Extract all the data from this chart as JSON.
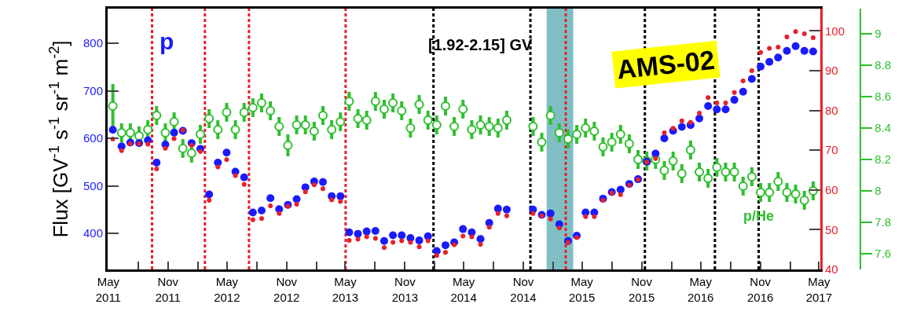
{
  "chart_data": {
    "type": "scatter",
    "ylabel": "Flux [GV$^{-1}$ s$^{-1}$ sr$^{-1}$ m$^{-2}$]",
    "annotations": [
      "[1.92-2.15] GV",
      "AMS-02"
    ],
    "x": [
      "2011-05-15",
      "2011-06-11",
      "2011-07-08",
      "2011-08-04",
      "2011-08-31",
      "2011-09-27",
      "2011-10-24",
      "2011-11-20",
      "2011-12-17",
      "2012-01-13",
      "2012-02-09",
      "2012-03-07",
      "2012-04-03",
      "2012-04-30",
      "2012-05-27",
      "2012-06-23",
      "2012-07-20",
      "2012-08-16",
      "2012-09-12",
      "2012-10-09",
      "2012-11-05",
      "2012-12-02",
      "2012-12-29",
      "2013-01-25",
      "2013-02-21",
      "2013-03-20",
      "2013-04-16",
      "2013-05-13",
      "2013-06-09",
      "2013-07-06",
      "2013-08-02",
      "2013-08-29",
      "2013-09-25",
      "2013-10-22",
      "2013-11-18",
      "2013-12-15",
      "2014-01-11",
      "2014-02-07",
      "2014-03-06",
      "2014-04-02",
      "2014-04-29",
      "2014-05-26",
      "2014-06-22",
      "2014-07-19",
      "2014-08-15",
      "2014-09-11",
      "2014-12-01",
      "2014-12-28",
      "2015-01-24",
      "2015-02-20",
      "2015-03-19",
      "2015-04-15",
      "2015-05-12",
      "2015-06-08",
      "2015-07-05",
      "2015-08-01",
      "2015-08-28",
      "2015-09-24",
      "2015-10-21",
      "2015-11-17",
      "2015-12-14",
      "2016-01-10",
      "2016-02-06",
      "2016-03-04",
      "2016-03-31",
      "2016-04-27",
      "2016-05-24",
      "2016-06-20",
      "2016-07-17",
      "2016-08-13",
      "2016-09-09",
      "2016-10-06",
      "2016-11-02",
      "2016-11-29",
      "2016-12-26",
      "2017-01-22",
      "2017-02-18",
      "2017-03-17",
      "2017-04-13"
    ],
    "series": [
      {
        "name": "p",
        "color": "#1a1aff",
        "marker": "circle",
        "values": [
          618,
          583,
          591,
          590,
          596,
          549,
          587,
          612,
          616,
          590,
          578,
          482,
          549,
          570,
          530,
          518,
          444,
          448,
          474,
          451,
          460,
          472,
          497,
          509,
          508,
          478,
          478,
          402,
          399,
          404,
          405,
          384,
          396,
          396,
          390,
          385,
          394,
          363,
          375,
          381,
          409,
          402,
          388,
          422,
          452,
          450,
          450,
          439,
          442,
          419,
          384,
          395,
          444,
          444,
          473,
          487,
          492,
          504,
          514,
          551,
          568,
          600,
          616,
          624,
          628,
          642,
          668,
          661,
          661,
          681,
          698,
          725,
          751,
          761,
          770,
          784,
          794,
          784,
          783
        ]
      },
      {
        "color": "#e8202a",
        "marker": "circle",
        "axis": "y2",
        "values": [
          72.8,
          69.9,
          71.6,
          71.6,
          71.5,
          65.3,
          70.5,
          72.9,
          75.0,
          71.2,
          69.7,
          57.4,
          65.8,
          67.6,
          63.6,
          61.4,
          52.5,
          52.8,
          56.0,
          54.1,
          55.9,
          56.4,
          59.5,
          61.3,
          60.3,
          57.5,
          57.1,
          47.3,
          47.6,
          48.2,
          47.8,
          45.5,
          46.8,
          47.2,
          46.8,
          45.7,
          47.2,
          43.5,
          44.3,
          46.2,
          48.4,
          48.2,
          46.3,
          50.6,
          54.1,
          53.5,
          54.1,
          53.5,
          52.7,
          50.4,
          46.8,
          48.0,
          53.3,
          53.3,
          57.4,
          59.2,
          58.8,
          61.2,
          62.6,
          67.0,
          67.9,
          74.4,
          75.5,
          77.4,
          77.0,
          79.3,
          83.2,
          81.9,
          81.9,
          84.5,
          87.4,
          90.0,
          94.6,
          95.6,
          95.9,
          98.5,
          99.8,
          99.3,
          98.3
        ],
        "errors": [
          0.5,
          0.5,
          0.5,
          0.5,
          0.5,
          0.5,
          0.5,
          0.5,
          0.5,
          0.5,
          0.5,
          0.5,
          0.5,
          0.5,
          0.5,
          0.5,
          0.5,
          0.5,
          0.5,
          0.5,
          0.5,
          0.5,
          0.5,
          0.5,
          0.5,
          0.5,
          0.5,
          0.5,
          0.5,
          0.5,
          0.5,
          0.5,
          0.5,
          0.5,
          0.5,
          0.5,
          0.5,
          0.5,
          0.5,
          0.5,
          0.5,
          0.5,
          0.5,
          0.5,
          0.5,
          0.5,
          0.5,
          0.5,
          0.5,
          0.5,
          0.5,
          0.5,
          0.5,
          0.5,
          0.5,
          0.5,
          0.5,
          0.5,
          0.5,
          0.5,
          0.5,
          0.5,
          0.5,
          0.5,
          0.5,
          0.5,
          0.5,
          0.5,
          0.5,
          0.5,
          0.5,
          0.5,
          0.5,
          0.5,
          0.5,
          0.5,
          0.5,
          0.5,
          0.5
        ]
      },
      {
        "name": "p/He",
        "color": "#2fbf2f",
        "marker": "circle",
        "axis": "y3",
        "values": [
          8.54,
          8.37,
          8.37,
          8.35,
          8.39,
          8.48,
          8.37,
          8.44,
          8.27,
          8.24,
          8.36,
          8.46,
          8.39,
          8.5,
          8.39,
          8.5,
          8.53,
          8.56,
          8.51,
          8.41,
          8.29,
          8.42,
          8.42,
          8.38,
          8.48,
          8.39,
          8.44,
          8.57,
          8.46,
          8.45,
          8.57,
          8.52,
          8.56,
          8.51,
          8.4,
          8.55,
          8.45,
          8.42,
          8.54,
          8.41,
          8.52,
          8.39,
          8.42,
          8.41,
          8.4,
          8.45,
          8.41,
          8.31,
          8.48,
          8.37,
          8.33,
          8.36,
          8.4,
          8.38,
          8.28,
          8.31,
          8.36,
          8.3,
          8.2,
          8.19,
          8.2,
          8.13,
          8.19,
          8.11,
          8.26,
          8.12,
          8.08,
          8.15,
          8.12,
          8.12,
          8.03,
          8.09,
          7.99,
          7.99,
          8.06,
          7.99,
          7.98,
          7.94,
          8.0
        ],
        "errors": [
          0.14,
          0.06,
          0.06,
          0.06,
          0.06,
          0.06,
          0.06,
          0.06,
          0.06,
          0.06,
          0.06,
          0.06,
          0.06,
          0.06,
          0.06,
          0.06,
          0.06,
          0.06,
          0.06,
          0.06,
          0.07,
          0.06,
          0.06,
          0.06,
          0.06,
          0.06,
          0.06,
          0.06,
          0.06,
          0.06,
          0.06,
          0.06,
          0.06,
          0.06,
          0.06,
          0.06,
          0.06,
          0.06,
          0.06,
          0.06,
          0.06,
          0.06,
          0.06,
          0.06,
          0.06,
          0.06,
          0.06,
          0.06,
          0.06,
          0.06,
          0.06,
          0.06,
          0.06,
          0.06,
          0.06,
          0.06,
          0.06,
          0.06,
          0.06,
          0.06,
          0.06,
          0.06,
          0.06,
          0.06,
          0.06,
          0.06,
          0.06,
          0.06,
          0.06,
          0.06,
          0.06,
          0.06,
          0.06,
          0.06,
          0.06,
          0.06,
          0.06,
          0.06,
          0.06
        ]
      }
    ],
    "xlim": [
      "2011-04-29",
      "2017-05-05"
    ],
    "xticks": [
      {
        "value": "2011-05-01",
        "label": "May\n2011"
      },
      {
        "value": "2011-08-01",
        "label": null
      },
      {
        "value": "2011-11-01",
        "label": "Nov\n2011"
      },
      {
        "value": "2012-02-01",
        "label": null
      },
      {
        "value": "2012-05-01",
        "label": "May\n2012"
      },
      {
        "value": "2012-08-01",
        "label": null
      },
      {
        "value": "2012-11-01",
        "label": "Nov\n2012"
      },
      {
        "value": "2013-02-01",
        "label": null
      },
      {
        "value": "2013-05-01",
        "label": "May\n2013"
      },
      {
        "value": "2013-08-01",
        "label": null
      },
      {
        "value": "2013-11-01",
        "label": "Nov\n2013"
      },
      {
        "value": "2014-02-01",
        "label": null
      },
      {
        "value": "2014-05-01",
        "label": "May\n2014"
      },
      {
        "value": "2014-08-01",
        "label": null
      },
      {
        "value": "2014-11-01",
        "label": "Nov\n2014"
      },
      {
        "value": "2015-02-01",
        "label": null
      },
      {
        "value": "2015-05-01",
        "label": "May\n2015"
      },
      {
        "value": "2015-08-01",
        "label": null
      },
      {
        "value": "2015-11-01",
        "label": "Nov\n2015"
      },
      {
        "value": "2016-02-01",
        "label": null
      },
      {
        "value": "2016-05-01",
        "label": "May\n2016"
      },
      {
        "value": "2016-08-01",
        "label": null
      },
      {
        "value": "2016-11-01",
        "label": "Nov\n2016"
      },
      {
        "value": "2017-02-01",
        "label": null
      },
      {
        "value": "2017-05-01",
        "label": "May\n2017"
      }
    ],
    "ylim": [
      324,
      873
    ],
    "yticks": [
      400,
      500,
      600,
      700,
      800
    ],
    "y2lim": [
      40,
      105.6
    ],
    "y2ticks": [
      40,
      50,
      60,
      70,
      80,
      90,
      100
    ],
    "y3lim": [
      7.5,
      9.16
    ],
    "y3ticks": [
      7.6,
      7.8,
      8,
      8.2,
      8.4,
      8.6,
      8.8,
      9
    ],
    "ref_lines": [
      {
        "axis": "x",
        "value": "2011-09-13",
        "color": "#e8202a",
        "line_style": "dashed"
      },
      {
        "axis": "x",
        "value": "2012-02-23",
        "color": "#e8202a",
        "line_style": "dashed"
      },
      {
        "axis": "x",
        "value": "2012-07-08",
        "color": "#e8202a",
        "line_style": "dashed"
      },
      {
        "axis": "x",
        "value": "2013-05-02",
        "color": "#e8202a",
        "line_style": "dashed"
      },
      {
        "axis": "x",
        "value": "2015-03-12",
        "color": "#e8202a",
        "line_style": "dashed"
      },
      {
        "axis": "x",
        "value": "2014-01-28",
        "color": "#000000",
        "line_style": "dashed"
      },
      {
        "axis": "x",
        "value": "2014-11-23",
        "color": "#000000",
        "line_style": "dashed"
      },
      {
        "axis": "x",
        "value": "2015-11-11",
        "color": "#000000",
        "line_style": "dashed"
      },
      {
        "axis": "x",
        "value": "2016-06-14",
        "color": "#000000",
        "line_style": "dashed"
      },
      {
        "axis": "x",
        "value": "2016-10-27",
        "color": "#000000",
        "line_style": "dashed"
      }
    ],
    "bands": [
      {
        "axis": "x",
        "from": "2015-01-12",
        "to": "2015-04-04",
        "color": "#7fbfc4"
      }
    ],
    "grid": false,
    "legend": "bottom right"
  }
}
